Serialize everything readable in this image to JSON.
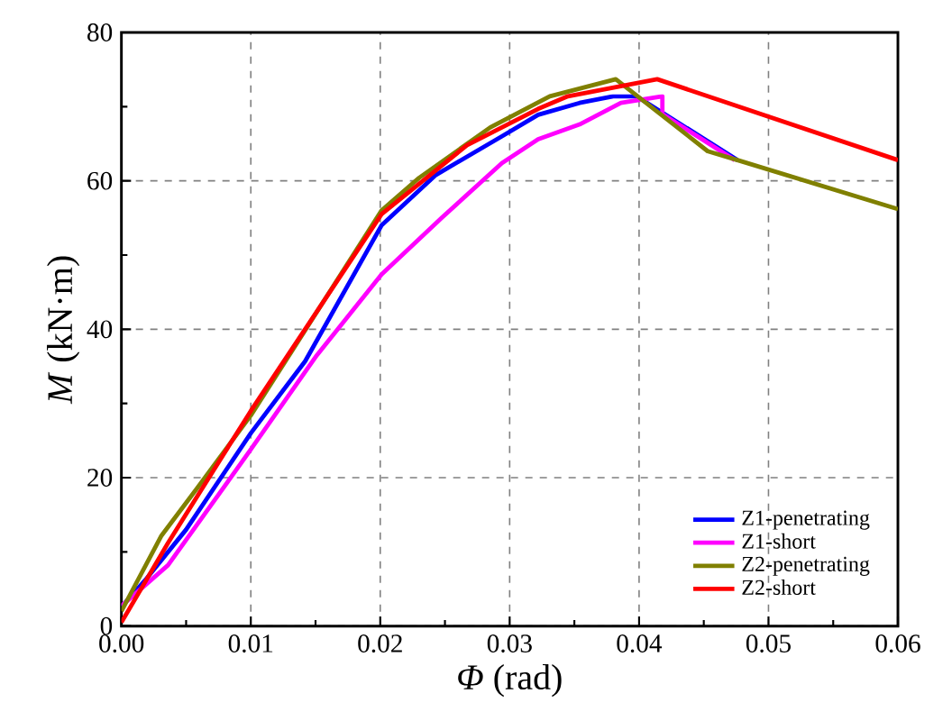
{
  "chart_data": {
    "type": "line",
    "xlabel": "*Φ* (rad)",
    "ylabel": "*M* (kN·m)",
    "xlim": [
      0,
      0.06
    ],
    "ylim": [
      0,
      80
    ],
    "xticks": [
      {
        "value": 0,
        "label": "0.00"
      },
      0.01,
      0.02,
      0.03,
      0.04,
      0.05,
      0.06
    ],
    "yticks": [
      0,
      20,
      40,
      60,
      80
    ],
    "grid": true,
    "legend": "bottom right",
    "marker": "none",
    "line_style": "solid",
    "series": [
      {
        "name": "Z1-penetrating",
        "color": "#0000ff",
        "x": [
          0,
          0.0018,
          0.005,
          0.01,
          0.0142,
          0.0201,
          0.0243,
          0.0294,
          0.0322,
          0.0354,
          0.038,
          0.0398,
          0.0476
        ],
        "values": [
          2.6,
          6.1,
          13,
          26,
          35.7,
          54,
          60.8,
          66,
          68.9,
          70.5,
          71.4,
          71.4,
          62.8
        ]
      },
      {
        "name": "Z1-short",
        "color": "#ff00ff",
        "x": [
          0,
          0.0036,
          0.01,
          0.0151,
          0.0201,
          0.0248,
          0.0294,
          0.0322,
          0.0354,
          0.0386,
          0.0418,
          0.0418,
          0.0474
        ],
        "values": [
          2.7,
          8.2,
          23.8,
          36.5,
          47.4,
          55.1,
          62.4,
          65.6,
          67.6,
          70.5,
          71.4,
          69,
          62.8
        ]
      },
      {
        "name": "Z2-penetrating",
        "color": "#808000",
        "x": [
          0,
          0.0031,
          0.0059,
          0.01,
          0.0201,
          0.023,
          0.0285,
          0.0331,
          0.0382,
          0.0453,
          0.0476,
          0.06
        ],
        "values": [
          2,
          12.2,
          18.7,
          28.4,
          56,
          60.4,
          67.2,
          71.4,
          73.7,
          64,
          62.8,
          56.2
        ]
      },
      {
        "name": "Z2-short",
        "color": "#ff0000",
        "x": [
          0,
          0.0036,
          0.01,
          0.0201,
          0.0267,
          0.0322,
          0.0345,
          0.0414,
          0.06
        ],
        "values": [
          0.5,
          11.2,
          29,
          55.5,
          64.8,
          69.7,
          71.4,
          73.7,
          62.8
        ]
      }
    ]
  }
}
